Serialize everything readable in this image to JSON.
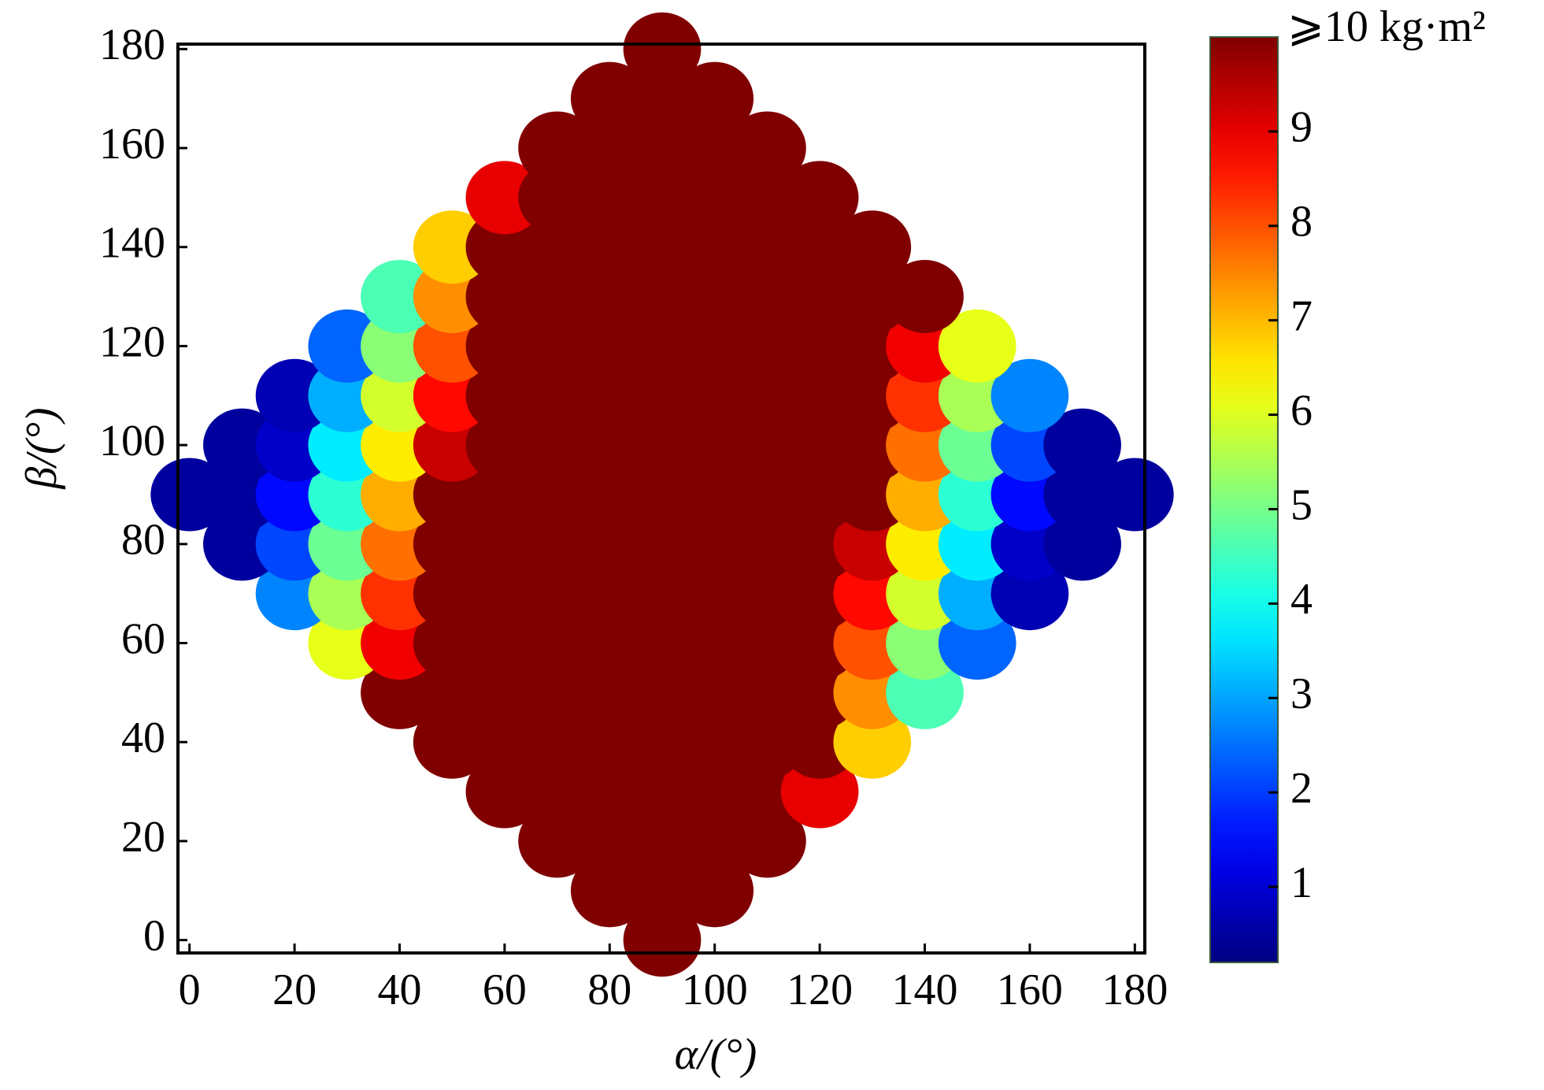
{
  "chart_data": {
    "type": "heatmap",
    "x": [
      0,
      10,
      20,
      30,
      40,
      50,
      60,
      70,
      80,
      90,
      100,
      110,
      120,
      130,
      140,
      150,
      160,
      170,
      180
    ],
    "y": [
      0,
      10,
      20,
      30,
      40,
      50,
      60,
      70,
      80,
      90,
      100,
      110,
      120,
      130,
      140,
      150,
      160,
      170,
      180
    ],
    "z": [
      [
        null,
        null,
        null,
        null,
        null,
        null,
        null,
        null,
        null,
        10,
        null,
        null,
        null,
        null,
        null,
        null,
        null,
        null,
        null
      ],
      [
        null,
        null,
        null,
        null,
        null,
        null,
        null,
        null,
        10,
        10,
        10,
        null,
        null,
        null,
        null,
        null,
        null,
        null,
        null
      ],
      [
        null,
        null,
        null,
        null,
        null,
        null,
        null,
        10,
        10,
        10,
        10,
        10,
        null,
        null,
        null,
        null,
        null,
        null,
        null
      ],
      [
        null,
        null,
        null,
        null,
        null,
        null,
        10,
        10,
        10,
        10,
        10,
        10,
        9,
        null,
        null,
        null,
        null,
        null,
        null
      ],
      [
        null,
        null,
        null,
        null,
        null,
        10,
        10,
        10,
        10,
        10,
        10,
        10,
        10,
        6.8,
        null,
        null,
        null,
        null,
        null
      ],
      [
        null,
        null,
        null,
        null,
        10,
        10,
        10,
        10,
        10,
        10,
        10,
        10,
        10,
        7.4,
        4.6,
        null,
        null,
        null,
        null
      ],
      [
        null,
        null,
        null,
        6.1,
        8.9,
        10,
        10,
        10,
        10,
        10,
        10,
        10,
        10,
        8,
        5.2,
        2.4,
        null,
        null,
        null
      ],
      [
        null,
        null,
        2.7,
        5.5,
        8.3,
        10,
        10,
        10,
        10,
        10,
        10,
        10,
        10,
        8.7,
        5.9,
        3.1,
        0.7,
        null,
        null
      ],
      [
        null,
        0.5,
        2.1,
        4.9,
        7.7,
        10,
        10,
        10,
        10,
        10,
        10,
        10,
        10,
        9.3,
        6.5,
        3.7,
        0.9,
        0.5,
        null
      ],
      [
        0.5,
        0.5,
        1.5,
        4.3,
        7.1,
        10,
        10,
        10,
        10,
        10,
        10,
        10,
        10,
        10,
        7.1,
        4.3,
        1.5,
        0.5,
        0.5
      ],
      [
        null,
        0.5,
        0.9,
        3.7,
        6.5,
        9.3,
        10,
        10,
        10,
        10,
        10,
        10,
        10,
        10,
        7.7,
        4.9,
        2.1,
        0.5,
        null
      ],
      [
        null,
        null,
        0.7,
        3.1,
        5.9,
        8.7,
        10,
        10,
        10,
        10,
        10,
        10,
        10,
        10,
        8.3,
        5.5,
        2.7,
        null,
        null
      ],
      [
        null,
        null,
        null,
        2.4,
        5.2,
        8,
        10,
        10,
        10,
        10,
        10,
        10,
        10,
        10,
        8.9,
        6.1,
        null,
        null,
        null
      ],
      [
        null,
        null,
        null,
        null,
        4.6,
        7.4,
        10,
        10,
        10,
        10,
        10,
        10,
        10,
        10,
        10,
        null,
        null,
        null,
        null
      ],
      [
        null,
        null,
        null,
        null,
        null,
        6.8,
        10,
        10,
        10,
        10,
        10,
        10,
        10,
        10,
        null,
        null,
        null,
        null,
        null
      ],
      [
        null,
        null,
        null,
        null,
        null,
        null,
        9,
        10,
        10,
        10,
        10,
        10,
        10,
        null,
        null,
        null,
        null,
        null,
        null
      ],
      [
        null,
        null,
        null,
        null,
        null,
        null,
        null,
        10,
        10,
        10,
        10,
        10,
        null,
        null,
        null,
        null,
        null,
        null,
        null
      ],
      [
        null,
        null,
        null,
        null,
        null,
        null,
        null,
        null,
        10,
        10,
        10,
        null,
        null,
        null,
        null,
        null,
        null,
        null,
        null
      ],
      [
        null,
        null,
        null,
        null,
        null,
        null,
        null,
        null,
        null,
        10,
        null,
        null,
        null,
        null,
        null,
        null,
        null,
        null,
        null
      ]
    ],
    "xlim": [
      -2.2,
      181.9
    ],
    "ylim": [
      -2.6,
      181
    ],
    "xticks": [
      0,
      20,
      40,
      60,
      80,
      100,
      120,
      140,
      160,
      180
    ],
    "yticks": [
      0,
      20,
      40,
      60,
      80,
      100,
      120,
      140,
      160,
      180
    ],
    "xlabel": "α/(°)",
    "ylabel": "β/(°)",
    "colormap": "jet",
    "clim": [
      0.2,
      10
    ],
    "colorbar_ticks": [
      1,
      2,
      3,
      4,
      5,
      6,
      7,
      8,
      9,
      {
        "value": 10,
        "label": "⩾10 kg·m²"
      }
    ]
  }
}
